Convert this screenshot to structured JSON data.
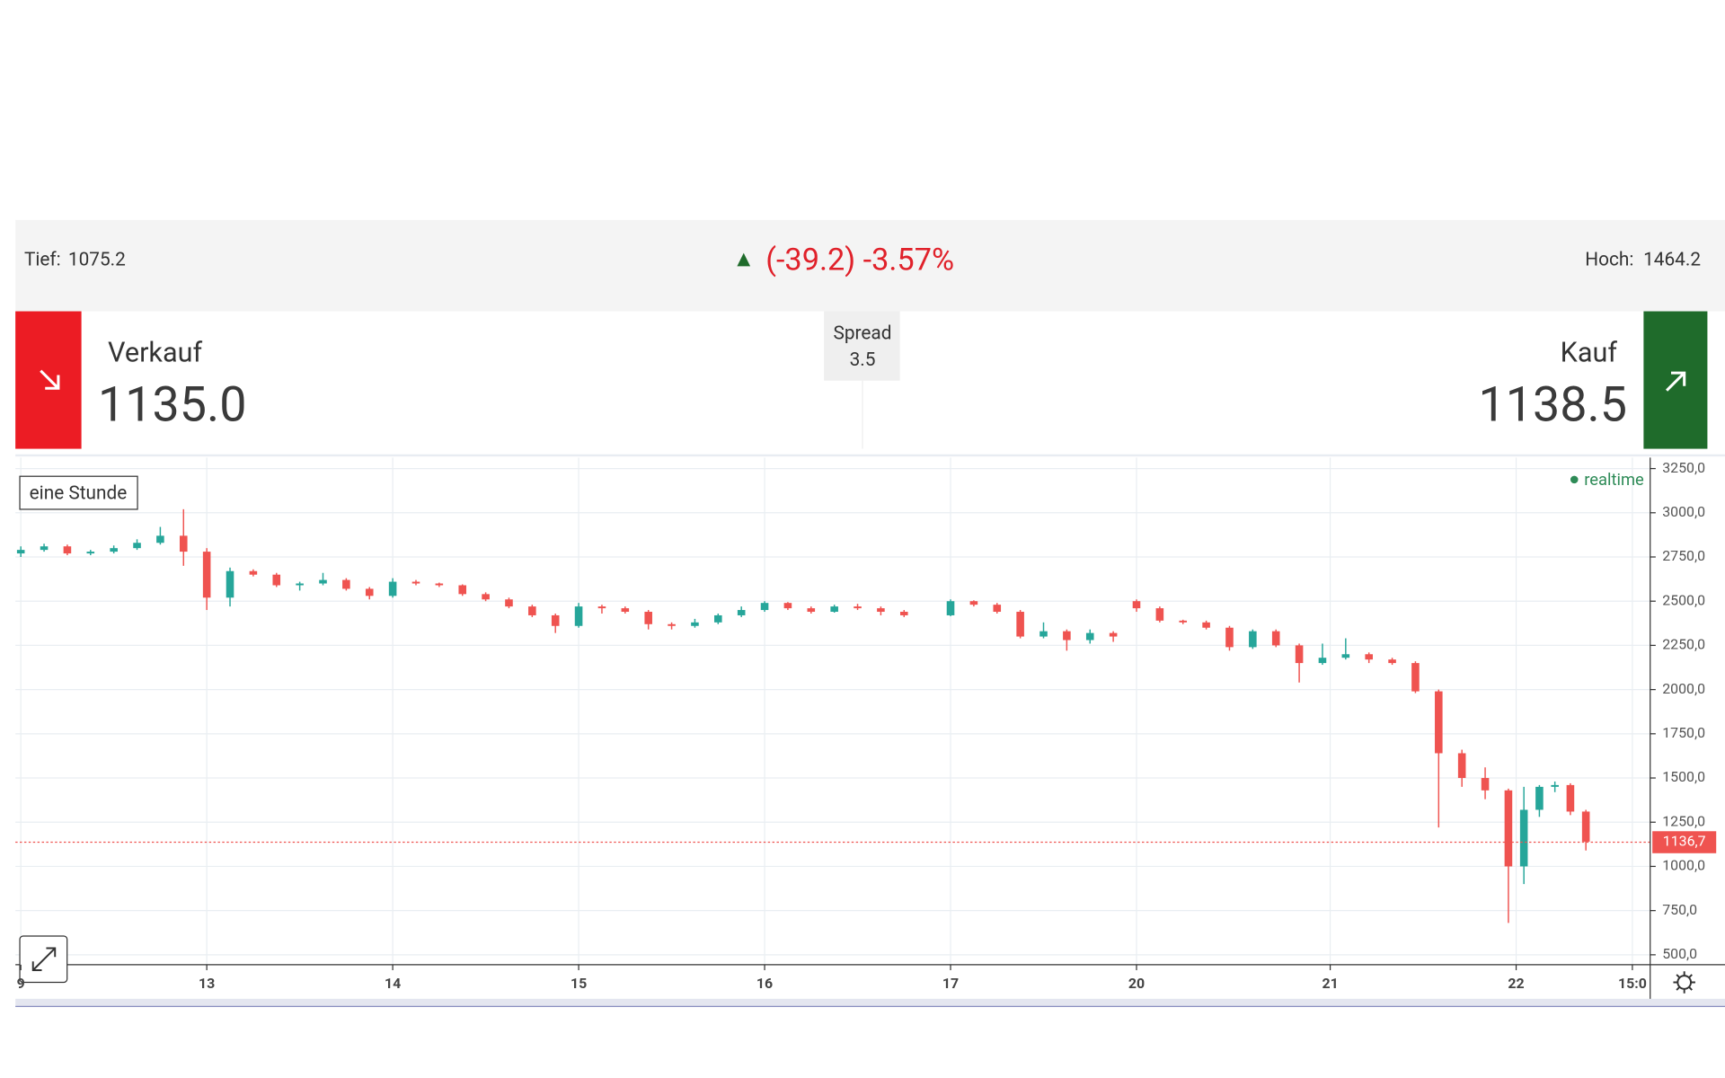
{
  "header": {
    "low_label": "Tief:",
    "low_value": "1075.2",
    "change": "(-39.2) -3.57%",
    "high_label": "Hoch:",
    "high_value": "1464.2"
  },
  "trade": {
    "sell_label": "Verkauf",
    "sell_price": "1135.0",
    "spread_label": "Spread",
    "spread_value": "3.5",
    "buy_label": "Kauf",
    "buy_price": "1138.5"
  },
  "chart_data": {
    "type": "candlestick",
    "interval": "eine Stunde",
    "status": "realtime",
    "up_color": "#26a69a",
    "down_color": "#ef5350",
    "x": [
      -24,
      -21,
      -18,
      -15,
      -12,
      -9,
      -6,
      -3,
      0,
      3,
      6,
      9,
      12,
      15,
      18,
      21,
      24,
      27,
      30,
      33,
      36,
      39,
      42,
      45,
      48,
      51,
      54,
      57,
      60,
      63,
      66,
      69,
      72,
      75,
      78,
      81,
      84,
      87,
      90,
      96,
      99,
      102,
      105,
      108,
      111,
      114,
      117,
      120,
      123,
      126,
      129,
      132,
      135,
      138,
      141,
      144,
      147,
      150,
      153,
      156,
      159,
      162,
      165,
      168,
      170,
      172,
      174,
      176,
      178
    ],
    "open": [
      2770,
      2790,
      2810,
      2770,
      2780,
      2800,
      2830,
      2870,
      2780,
      2520,
      2670,
      2650,
      2590,
      2600,
      2620,
      2570,
      2530,
      2610,
      2600,
      2590,
      2540,
      2510,
      2470,
      2420,
      2360,
      2470,
      2460,
      2440,
      2370,
      2360,
      2380,
      2420,
      2450,
      2490,
      2460,
      2440,
      2470,
      2460,
      2440,
      2420,
      2500,
      2480,
      2440,
      2300,
      2330,
      2280,
      2320,
      2500,
      2460,
      2390,
      2380,
      2350,
      2240,
      2330,
      2250,
      2150,
      2180,
      2200,
      2170,
      2150,
      1990,
      1640,
      1500,
      1430,
      1000,
      1320,
      1450,
      1460,
      1310
    ],
    "high": [
      2810,
      2825,
      2820,
      2790,
      2815,
      2850,
      2920,
      3020,
      2800,
      2690,
      2680,
      2660,
      2610,
      2660,
      2630,
      2580,
      2630,
      2620,
      2605,
      2595,
      2550,
      2520,
      2480,
      2430,
      2490,
      2480,
      2470,
      2450,
      2380,
      2400,
      2430,
      2470,
      2500,
      2495,
      2470,
      2480,
      2485,
      2470,
      2450,
      2510,
      2505,
      2490,
      2450,
      2380,
      2340,
      2340,
      2330,
      2510,
      2470,
      2395,
      2390,
      2360,
      2340,
      2340,
      2260,
      2260,
      2290,
      2210,
      2180,
      2160,
      2000,
      1660,
      1560,
      1440,
      1450,
      1460,
      1480,
      1470,
      1320
    ],
    "low": [
      2750,
      2780,
      2760,
      2760,
      2770,
      2790,
      2820,
      2700,
      2450,
      2470,
      2640,
      2580,
      2560,
      2590,
      2560,
      2510,
      2520,
      2590,
      2580,
      2530,
      2500,
      2460,
      2410,
      2320,
      2350,
      2430,
      2430,
      2340,
      2340,
      2350,
      2370,
      2410,
      2440,
      2450,
      2430,
      2435,
      2450,
      2420,
      2410,
      2415,
      2470,
      2430,
      2290,
      2290,
      2220,
      2260,
      2270,
      2440,
      2380,
      2370,
      2340,
      2220,
      2230,
      2240,
      2040,
      2140,
      2170,
      2150,
      2140,
      1980,
      1220,
      1450,
      1380,
      680,
      900,
      1280,
      1420,
      1290,
      1090
    ],
    "close": [
      2790,
      2810,
      2770,
      2780,
      2800,
      2830,
      2870,
      2780,
      2520,
      2670,
      2650,
      2590,
      2600,
      2620,
      2570,
      2530,
      2610,
      2600,
      2590,
      2540,
      2510,
      2470,
      2420,
      2360,
      2470,
      2460,
      2440,
      2370,
      2360,
      2380,
      2420,
      2450,
      2490,
      2460,
      2440,
      2470,
      2460,
      2440,
      2420,
      2500,
      2480,
      2440,
      2300,
      2330,
      2280,
      2320,
      2300,
      2460,
      2390,
      2380,
      2350,
      2240,
      2330,
      2250,
      2150,
      2180,
      2200,
      2170,
      2150,
      1990,
      1640,
      1500,
      1430,
      1000,
      1320,
      1450,
      1460,
      1310,
      1140
    ],
    "last_price": {
      "value": 1136.7,
      "label": "1136,7"
    },
    "xlim": [
      -24.7,
      186.3
    ],
    "xticks": [
      {
        "value": -24,
        "label": "9"
      },
      {
        "value": 0,
        "label": "13"
      },
      {
        "value": 24,
        "label": "14"
      },
      {
        "value": 48,
        "label": "15"
      },
      {
        "value": 72,
        "label": "16"
      },
      {
        "value": 96,
        "label": "17"
      },
      {
        "value": 120,
        "label": "20"
      },
      {
        "value": 145,
        "label": "21"
      },
      {
        "value": 169,
        "label": "22"
      },
      {
        "value": 184,
        "label": "15:0"
      }
    ],
    "ylim": [
      444,
      3312
    ],
    "yticks": [
      {
        "value": 500,
        "label": "500,0"
      },
      {
        "value": 750,
        "label": "750,0"
      },
      {
        "value": 1000,
        "label": "1000,0"
      },
      {
        "value": 1250,
        "label": "1250,0"
      },
      {
        "value": 1500,
        "label": "1500,0"
      },
      {
        "value": 1750,
        "label": "1750,0"
      },
      {
        "value": 2000,
        "label": "2000,0"
      },
      {
        "value": 2250,
        "label": "2250,0"
      },
      {
        "value": 2500,
        "label": "2500,0"
      },
      {
        "value": 2750,
        "label": "2750,0"
      },
      {
        "value": 3000,
        "label": "3000,0"
      },
      {
        "value": 3250,
        "label": "3250,0"
      }
    ],
    "grid": true
  }
}
